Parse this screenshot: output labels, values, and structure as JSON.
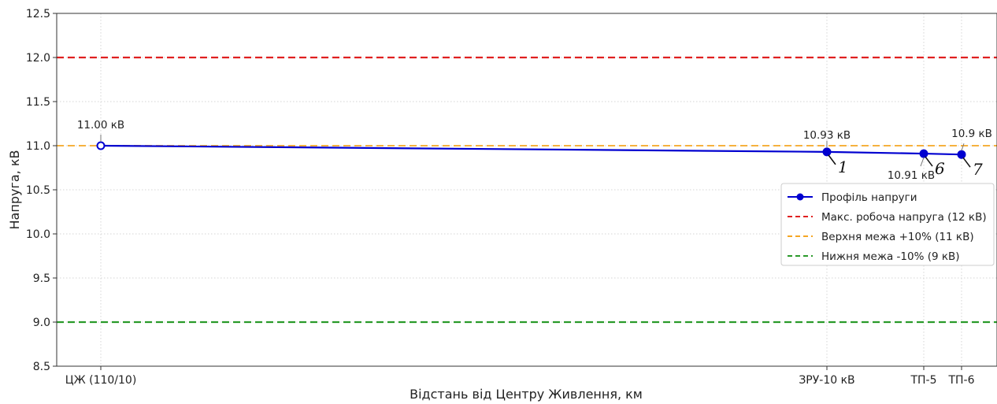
{
  "chart_data": {
    "type": "line",
    "xlabel": "Відстань від Центру Живлення, км",
    "ylabel": "Напруга, кВ",
    "ylim": [
      8.5,
      12.5
    ],
    "yticks": [
      "8.5",
      "9.0",
      "9.5",
      "10.0",
      "10.5",
      "11.0",
      "11.5",
      "12.0",
      "12.5"
    ],
    "grid": true,
    "legend_position": "right",
    "categories": [
      "ЦЖ (110/10)",
      "ЗРУ-10 кВ",
      "ТП-5",
      "ТП-6"
    ],
    "series": [
      {
        "name": "Профіль напруги",
        "color": "#0000d0",
        "values": [
          11.0,
          10.93,
          10.91,
          10.9
        ],
        "point_labels": [
          "11.00 кВ",
          "10.93 кВ",
          "10.91 кВ",
          "10.9  кВ"
        ]
      }
    ],
    "reference_lines": [
      {
        "name": "Макс. робоча напруга (12 кВ)",
        "value": 12.0,
        "color": "#e02020"
      },
      {
        "name": "Верхня межа +10% (11 кВ)",
        "value": 11.0,
        "color": "#f5a623"
      },
      {
        "name": "Нижня межа -10% (9 кВ)",
        "value": 9.0,
        "color": "#2a9a2a"
      }
    ],
    "callouts": [
      "1",
      "6",
      "7"
    ]
  }
}
